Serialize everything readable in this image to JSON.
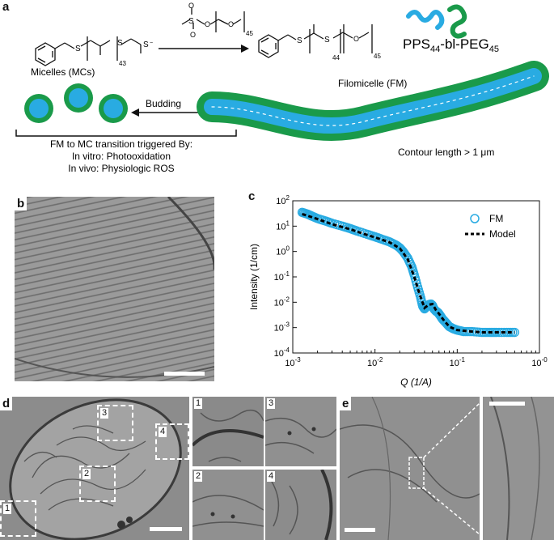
{
  "panel_a": {
    "letter": "a",
    "subscript_43": "43",
    "subscript_44": "44",
    "subscript_45_reagent": "45",
    "subscript_45_product": "45",
    "polymer_name": "PPS",
    "polymer_sub1": "44",
    "polymer_mid": "-bl-PEG",
    "polymer_sub2": "45",
    "micelles_label": "Micelles (MCs)",
    "filomicelle_label": "Filomicelle (FM)",
    "budding_label": "Budding",
    "transition_line1": "FM to MC transition triggered By:",
    "transition_line2": "In vitro: Photooxidation",
    "transition_line3": "In vivo: Physiologic ROS",
    "contour_label": "Contour length > 1 μm",
    "colors": {
      "pps": "#29abe2",
      "peg": "#1a9a4a"
    }
  },
  "panel_b": {
    "letter": "b"
  },
  "panel_c": {
    "letter": "c"
  },
  "chart_data": {
    "type": "scatter",
    "xlabel": "Q (1/A)",
    "ylabel": "Intensity (1/cm)",
    "xscale": "log",
    "yscale": "log",
    "xlim": [
      0.001,
      1
    ],
    "ylim": [
      0.0001,
      100
    ],
    "xtick_labels": [
      "10⁻³",
      "10⁻²",
      "10⁻¹",
      "10⁻⁰"
    ],
    "ytick_labels": [
      "10⁴⁻",
      "10⁻³",
      "10⁻²",
      "10⁻¹",
      "10⁰",
      "10¹",
      "10²"
    ],
    "xtick_plain": [
      "10-3",
      "10-2",
      "10-1",
      "10-0"
    ],
    "ytick_plain": [
      "10-4",
      "10-3",
      "10-2",
      "10-1",
      "100",
      "101",
      "102"
    ],
    "legend_position": "top-right",
    "series": [
      {
        "name": "FM",
        "style": "open-circle",
        "color": "#29abe2",
        "x": [
          0.0013,
          0.0015,
          0.0017,
          0.002,
          0.0025,
          0.003,
          0.004,
          0.005,
          0.006,
          0.008,
          0.01,
          0.012,
          0.015,
          0.018,
          0.02,
          0.022,
          0.025,
          0.028,
          0.03,
          0.033,
          0.036,
          0.038,
          0.04,
          0.042,
          0.045,
          0.048,
          0.05,
          0.052,
          0.055,
          0.058,
          0.06,
          0.063,
          0.066,
          0.07,
          0.075,
          0.08,
          0.09,
          0.1,
          0.12,
          0.15,
          0.2,
          0.25,
          0.3,
          0.4,
          0.5
        ],
        "y": [
          35,
          30,
          25,
          20,
          16,
          13,
          10,
          8,
          6.5,
          4.8,
          3.8,
          3.1,
          2.4,
          1.8,
          1.4,
          1.0,
          0.55,
          0.25,
          0.12,
          0.04,
          0.015,
          0.007,
          0.0055,
          0.0065,
          0.008,
          0.0085,
          0.0075,
          0.0055,
          0.0045,
          0.004,
          0.0035,
          0.0028,
          0.0022,
          0.0018,
          0.0014,
          0.0011,
          0.0009,
          0.0008,
          0.0007,
          0.0007,
          0.00065,
          0.00065,
          0.00065,
          0.00065,
          0.00065
        ]
      },
      {
        "name": "Model",
        "style": "dashed-line",
        "color": "#000000",
        "x": [
          0.0013,
          0.0015,
          0.002,
          0.003,
          0.005,
          0.008,
          0.01,
          0.015,
          0.02,
          0.025,
          0.03,
          0.035,
          0.04,
          0.045,
          0.05,
          0.055,
          0.06,
          0.07,
          0.08,
          0.1,
          0.15,
          0.2,
          0.3,
          0.5
        ],
        "y": [
          30,
          26,
          19,
          12,
          7.5,
          4.5,
          3.6,
          2.3,
          1.35,
          0.5,
          0.1,
          0.02,
          0.006,
          0.008,
          0.0085,
          0.005,
          0.0035,
          0.0018,
          0.0011,
          0.0008,
          0.0007,
          0.00065,
          0.00065,
          0.00065
        ]
      }
    ]
  },
  "panel_d": {
    "letter": "d",
    "box_labels": [
      "1",
      "2",
      "3",
      "4"
    ],
    "inset_labels": [
      "1",
      "3",
      "2",
      "4"
    ]
  },
  "panel_e": {
    "letter": "e"
  }
}
